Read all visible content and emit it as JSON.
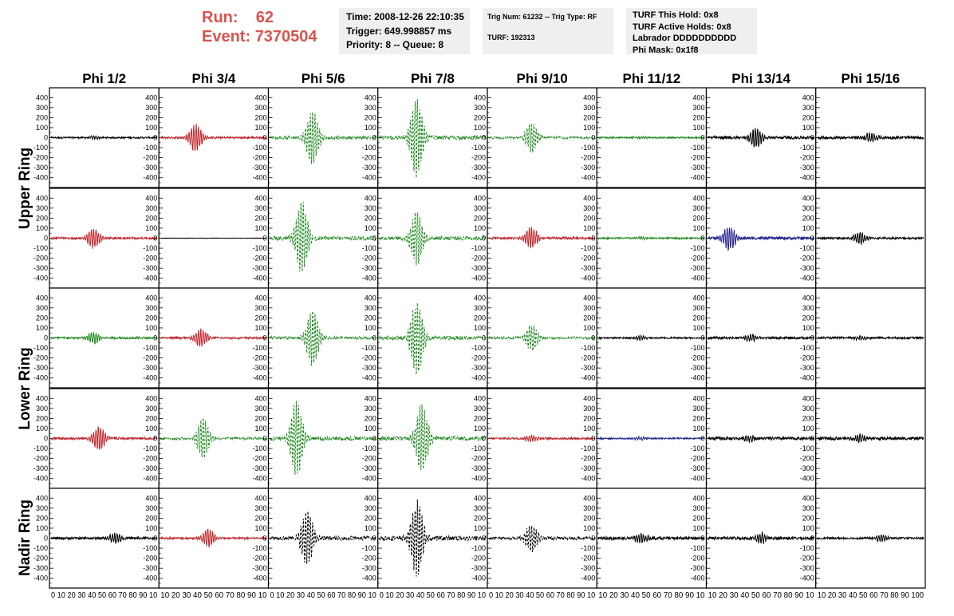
{
  "header": {
    "run_label": "Run:",
    "run_value": "62",
    "event_label": "Event:",
    "event_value": "7370504",
    "time": "Time: 2008-12-26 22:10:35",
    "trigger": "Trigger: 649.998857 ms",
    "priority": "Priority: 8 -- Queue: 8",
    "trig_num": "Trig Num: 61232 -- Trig Type: RF",
    "turf": "TURF: 192313",
    "turf_hold": "TURF This Hold: 0x8",
    "turf_active": "TURF Active Holds: 0x8",
    "labrador": "Labrador DDDDDDDDDD",
    "phi_mask": "Phi Mask: 0x1f8"
  },
  "colors": {
    "title_red": "#d9534f",
    "black": "#000000",
    "red": "#c0262c",
    "green": "#1f8a1f",
    "blue": "#23238c"
  },
  "chart_data": {
    "type": "line",
    "columns": [
      "Phi 1/2",
      "Phi 3/4",
      "Phi 5/6",
      "Phi 7/8",
      "Phi 9/10",
      "Phi 11/12",
      "Phi 13/14",
      "Phi 15/16"
    ],
    "rows": [
      "Upper Ring",
      "Lower Ring",
      "Nadir Ring"
    ],
    "ylim": [
      -450,
      450
    ],
    "yticks": [
      "400",
      "300",
      "200",
      "100",
      "0",
      "-100",
      "-200",
      "-300",
      "-400"
    ],
    "xlim": [
      0,
      100
    ],
    "xtick_strip": [
      "0 10 20 30 40 50 60 70 80 90 10",
      "10 20 30 40 50 60 70 80 90 10",
      "0 10 20 30 40 50 60 70 80 90 10",
      "0 10 20 30 40 50 60 70 80 90 10",
      "0 10 20 30 40 50 60 70 80 90 10",
      "10 20 30 40 50 60 70 80 90 10",
      "10 20 30 40 50 60 70 80 90 10",
      "10 20 30 40 50 60 70 80 90 100"
    ],
    "panels": [
      [
        {
          "color": "black",
          "style": "solid",
          "center": 40,
          "amp": 15,
          "noise": 8
        },
        {
          "color": "red",
          "style": "solid",
          "center": 33,
          "amp": 140,
          "noise": 10
        },
        {
          "color": "green",
          "style": "dashed",
          "center": 40,
          "amp": 270,
          "noise": 15
        },
        {
          "color": "green",
          "style": "dashed",
          "center": 35,
          "amp": 390,
          "noise": 20
        },
        {
          "color": "green",
          "style": "dashed",
          "center": 40,
          "amp": 150,
          "noise": 12
        },
        {
          "color": "green",
          "style": "solid",
          "center": 40,
          "amp": 12,
          "noise": 7
        },
        {
          "color": "black",
          "style": "solid",
          "center": 45,
          "amp": 100,
          "noise": 15
        },
        {
          "color": "black",
          "style": "solid",
          "center": 50,
          "amp": 45,
          "noise": 15
        }
      ],
      [
        {
          "color": "red",
          "style": "solid",
          "center": 40,
          "amp": 100,
          "noise": 10
        },
        {
          "color": "black",
          "style": "solid",
          "center": 40,
          "amp": 3,
          "noise": 2
        },
        {
          "color": "green",
          "style": "dashed",
          "center": 30,
          "amp": 360,
          "noise": 20
        },
        {
          "color": "green",
          "style": "dashed",
          "center": 35,
          "amp": 270,
          "noise": 20
        },
        {
          "color": "red",
          "style": "solid",
          "center": 40,
          "amp": 110,
          "noise": 12
        },
        {
          "color": "green",
          "style": "solid",
          "center": 40,
          "amp": 15,
          "noise": 8
        },
        {
          "color": "blue",
          "style": "solid",
          "center": 20,
          "amp": 120,
          "noise": 15
        },
        {
          "color": "black",
          "style": "solid",
          "center": 40,
          "amp": 60,
          "noise": 10
        }
      ],
      [
        {
          "color": "green",
          "style": "solid",
          "center": 40,
          "amp": 60,
          "noise": 10
        },
        {
          "color": "red",
          "style": "solid",
          "center": 38,
          "amp": 90,
          "noise": 10
        },
        {
          "color": "green",
          "style": "dashed",
          "center": 40,
          "amp": 280,
          "noise": 15
        },
        {
          "color": "green",
          "style": "dashed",
          "center": 35,
          "amp": 380,
          "noise": 20
        },
        {
          "color": "green",
          "style": "dashed",
          "center": 40,
          "amp": 130,
          "noise": 12
        },
        {
          "color": "black",
          "style": "solid",
          "center": 40,
          "amp": 20,
          "noise": 8
        },
        {
          "color": "black",
          "style": "solid",
          "center": 40,
          "amp": 35,
          "noise": 12
        },
        {
          "color": "black",
          "style": "solid",
          "center": 40,
          "amp": 20,
          "noise": 10
        }
      ],
      [
        {
          "color": "red",
          "style": "solid",
          "center": 45,
          "amp": 120,
          "noise": 12
        },
        {
          "color": "green",
          "style": "dashed",
          "center": 40,
          "amp": 200,
          "noise": 12
        },
        {
          "color": "green",
          "style": "dashed",
          "center": 25,
          "amp": 380,
          "noise": 20
        },
        {
          "color": "green",
          "style": "dashed",
          "center": 40,
          "amp": 340,
          "noise": 20
        },
        {
          "color": "red",
          "style": "solid",
          "center": 40,
          "amp": 30,
          "noise": 10
        },
        {
          "color": "blue",
          "style": "solid",
          "center": 40,
          "amp": 15,
          "noise": 8
        },
        {
          "color": "black",
          "style": "solid",
          "center": 40,
          "amp": 30,
          "noise": 15
        },
        {
          "color": "black",
          "style": "solid",
          "center": 40,
          "amp": 40,
          "noise": 15
        }
      ],
      [
        {
          "color": "black",
          "style": "solid",
          "center": 60,
          "amp": 50,
          "noise": 12
        },
        {
          "color": "red",
          "style": "solid",
          "center": 45,
          "amp": 90,
          "noise": 10
        },
        {
          "color": "black",
          "style": "dashed",
          "center": 35,
          "amp": 270,
          "noise": 20
        },
        {
          "color": "black",
          "style": "dashed",
          "center": 35,
          "amp": 380,
          "noise": 25
        },
        {
          "color": "black",
          "style": "dashed",
          "center": 40,
          "amp": 140,
          "noise": 15
        },
        {
          "color": "black",
          "style": "solid",
          "center": 40,
          "amp": 50,
          "noise": 15
        },
        {
          "color": "black",
          "style": "solid",
          "center": 50,
          "amp": 55,
          "noise": 15
        },
        {
          "color": "black",
          "style": "solid",
          "center": 60,
          "amp": 30,
          "noise": 10
        }
      ]
    ]
  }
}
